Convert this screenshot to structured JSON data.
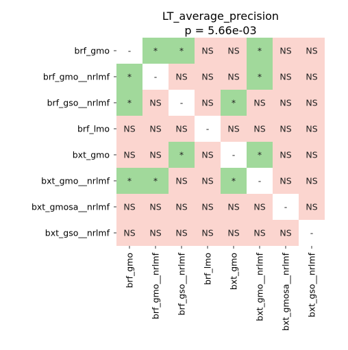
{
  "chart_data": {
    "type": "heatmap",
    "title_line1": "LT_average_precision",
    "title_line2": "p = 5.66e-03",
    "labels": [
      "brf_gmo",
      "brf_gmo__nrlmf",
      "brf_gso__nrlmf",
      "brf_lmo",
      "bxt_gmo",
      "bxt_gmo__nrlmf",
      "bxt_gmosa__nrlmf",
      "bxt_gso__nrlmf"
    ],
    "matrix": [
      [
        "-",
        "*",
        "*",
        "NS",
        "NS",
        "*",
        "NS",
        "NS"
      ],
      [
        "*",
        "-",
        "NS",
        "NS",
        "NS",
        "*",
        "NS",
        "NS"
      ],
      [
        "*",
        "NS",
        "-",
        "NS",
        "*",
        "NS",
        "NS",
        "NS"
      ],
      [
        "NS",
        "NS",
        "NS",
        "-",
        "NS",
        "NS",
        "NS",
        "NS"
      ],
      [
        "NS",
        "NS",
        "*",
        "NS",
        "-",
        "*",
        "NS",
        "NS"
      ],
      [
        "*",
        "*",
        "NS",
        "NS",
        "*",
        "-",
        "NS",
        "NS"
      ],
      [
        "NS",
        "NS",
        "NS",
        "NS",
        "NS",
        "NS",
        "-",
        "NS"
      ],
      [
        "NS",
        "NS",
        "NS",
        "NS",
        "NS",
        "NS",
        "NS",
        "-"
      ]
    ],
    "colors": {
      "significant": "#a1d99b",
      "not_significant": "#fbd5cf",
      "diagonal": "#ffffff"
    }
  }
}
